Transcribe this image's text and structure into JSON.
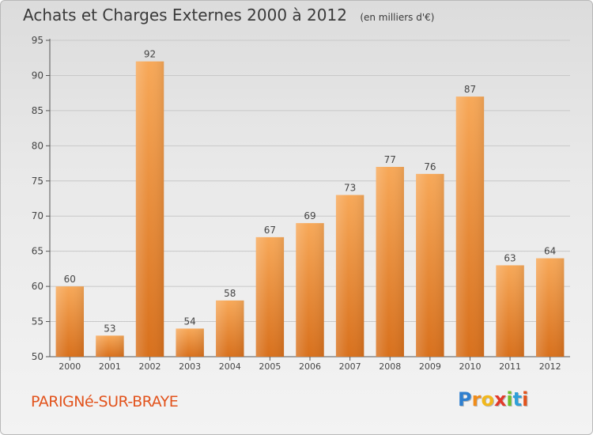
{
  "header": {
    "title": "Achats et Charges Externes 2000 à 2012",
    "unit": "(en milliers d'€)"
  },
  "footer": {
    "commune": "PARIGNé-SUR-BRAYE",
    "logo_letters": [
      {
        "ch": "P",
        "color": "#2e7fcf"
      },
      {
        "ch": "r",
        "color": "#f08c1a"
      },
      {
        "ch": "o",
        "color": "#f2b81c"
      },
      {
        "ch": "x",
        "color": "#e23a2a"
      },
      {
        "ch": "i",
        "color": "#6cbf2a"
      },
      {
        "ch": "t",
        "color": "#2e9fd8"
      },
      {
        "ch": "i",
        "color": "#e2531c"
      }
    ]
  },
  "chart_data": {
    "type": "bar",
    "categories": [
      "2000",
      "2001",
      "2002",
      "2003",
      "2004",
      "2005",
      "2006",
      "2007",
      "2008",
      "2009",
      "2010",
      "2011",
      "2012"
    ],
    "values": [
      60,
      53,
      92,
      54,
      58,
      67,
      69,
      73,
      77,
      76,
      87,
      63,
      64
    ],
    "data_labels": [
      "60",
      "53",
      "92",
      "54",
      "58",
      "67",
      "69",
      "73",
      "77",
      "76",
      "87",
      "63",
      "64"
    ],
    "ylim": [
      50,
      95
    ],
    "yticks": [
      50,
      55,
      60,
      65,
      70,
      75,
      80,
      85,
      90,
      95
    ],
    "ytick_labels": [
      "50",
      "55",
      "60",
      "65",
      "70",
      "75",
      "80",
      "85",
      "90",
      "95"
    ],
    "grid": true,
    "bar_color_light": "#f7a858",
    "bar_color_dark": "#d8701c"
  }
}
